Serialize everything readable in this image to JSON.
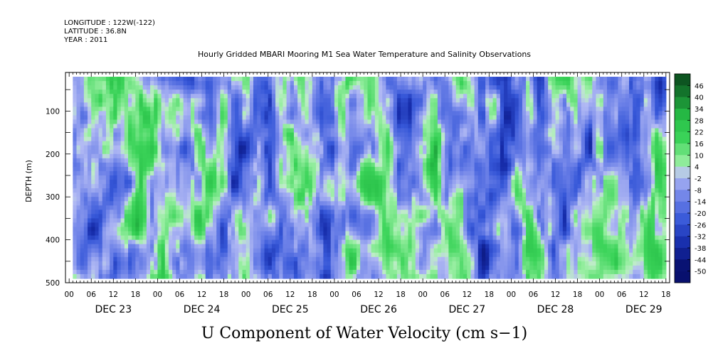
{
  "header": {
    "longitude": "LONGITUDE : 122W(-122)",
    "latitude": "LATITUDE : 36.8N",
    "year": "YEAR : 2011"
  },
  "chart_data": {
    "type": "heatmap",
    "title": "Hourly Gridded MBARI Mooring M1 Sea Water Temperature and Salinity Observations",
    "xlabel": "",
    "ylabel": "DEPTH (m)",
    "variable_label": "U Component of Water Velocity (cm s−1)",
    "x_tick_hours": [
      "00",
      "06",
      "12",
      "18",
      "00",
      "06",
      "12",
      "18",
      "00",
      "06",
      "12",
      "18",
      "00",
      "06",
      "12",
      "18",
      "00",
      "06",
      "12",
      "18",
      "00",
      "06",
      "12",
      "18",
      "00",
      "06",
      "12",
      "18"
    ],
    "x_day_labels": [
      "DEC 23",
      "DEC 24",
      "DEC 25",
      "DEC 26",
      "DEC 27",
      "DEC 28",
      "DEC 29"
    ],
    "xlim_hours": [
      -1,
      163
    ],
    "data_start_hour": 1,
    "data_end_hour": 162,
    "y_ticks": [
      100,
      200,
      300,
      400,
      500
    ],
    "y_tick_labels": [
      "100",
      "200",
      "300",
      "400",
      "500"
    ],
    "ylim": [
      500,
      10
    ],
    "data_depth_range": [
      20,
      485
    ],
    "colorbar": {
      "levels": [
        "46",
        "40",
        "34",
        "28",
        "22",
        "16",
        "10",
        "4",
        "-2",
        "-8",
        "-14",
        "-20",
        "-26",
        "-32",
        "-38",
        "-44",
        "-50"
      ],
      "range": [
        -50,
        50
      ]
    },
    "colors": {
      "strong_negative": "#0d1f86",
      "negative": "#3657d8",
      "slightly_negative": "#a8b4f0",
      "slightly_positive": "#9ef0a8",
      "positive": "#2ece4c",
      "strong_positive": "#0c4a1c"
    }
  }
}
